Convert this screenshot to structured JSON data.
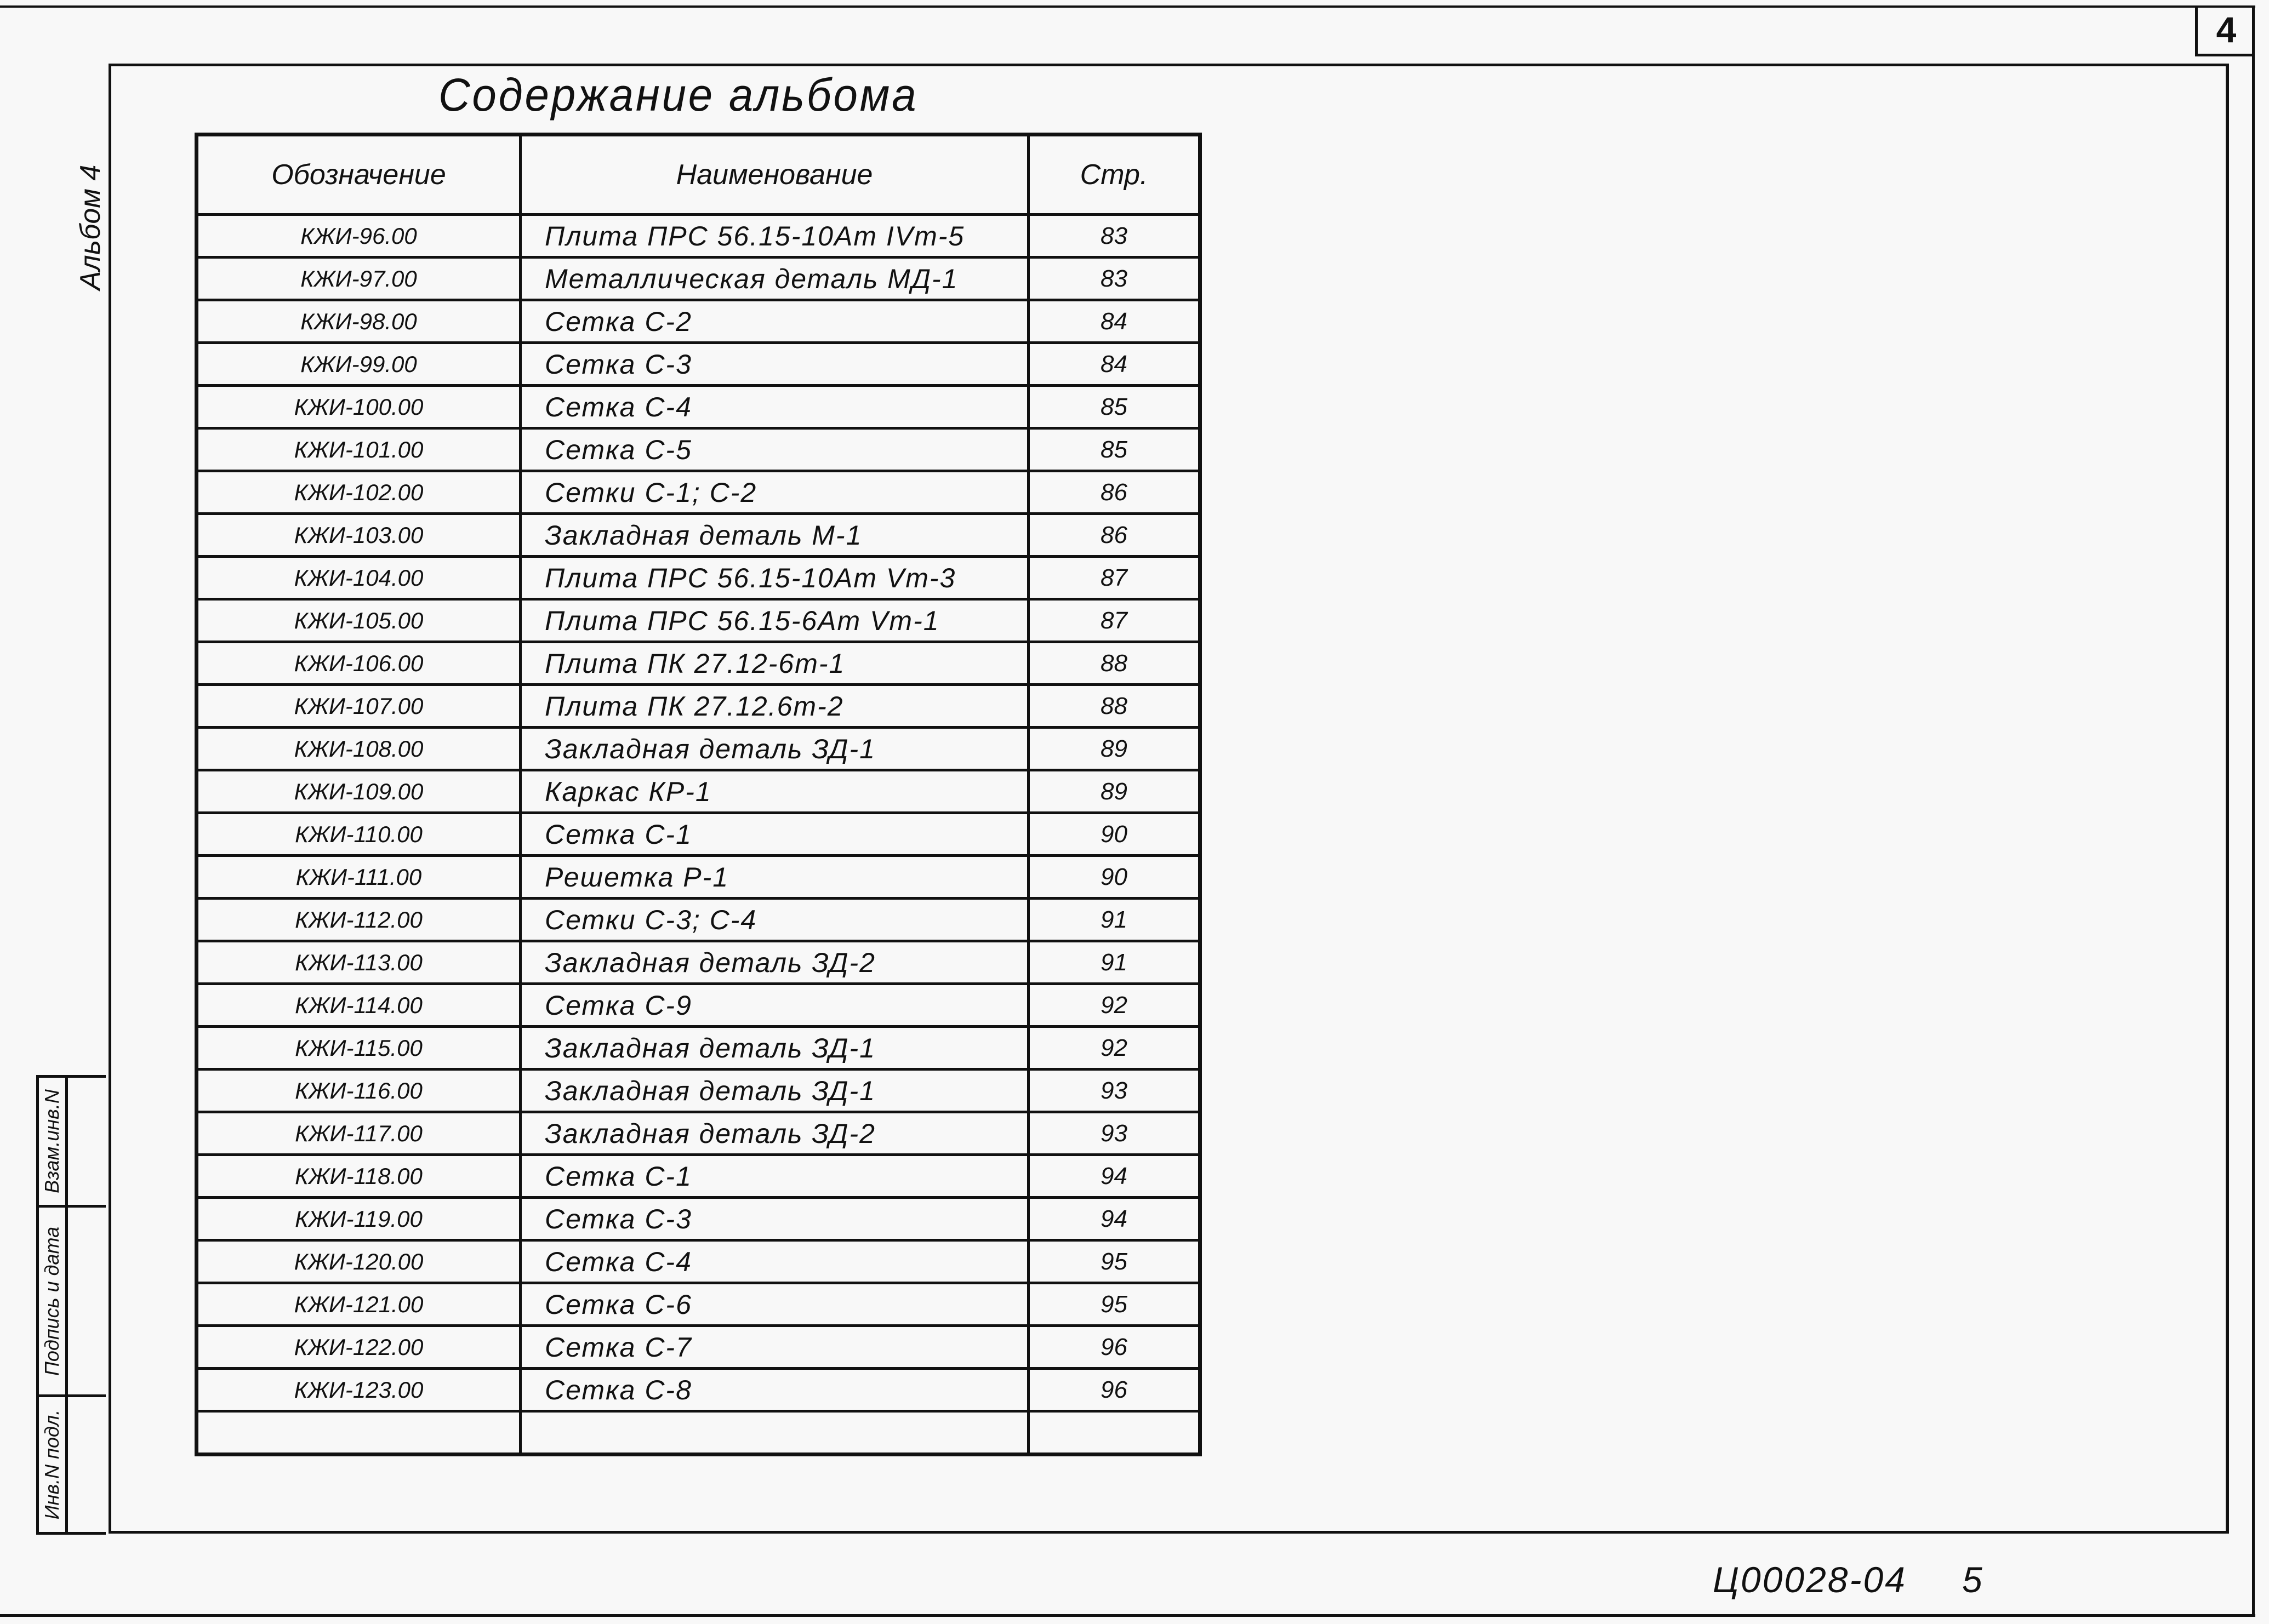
{
  "sheet_number": "4",
  "title": "Содержание альбома",
  "album_label": "Альбом 4",
  "table": {
    "headers": {
      "code": "Обозначение",
      "name": "Наименование",
      "page": "Стр."
    },
    "rows": [
      {
        "code": "КЖИ-96.00",
        "name": "Плита ПРС 56.15-10Ат IVт-5",
        "page": "83"
      },
      {
        "code": "КЖИ-97.00",
        "name": "Металлическая деталь МД-1",
        "page": "83"
      },
      {
        "code": "КЖИ-98.00",
        "name": "Сетка С-2",
        "page": "84"
      },
      {
        "code": "КЖИ-99.00",
        "name": "Сетка С-3",
        "page": "84"
      },
      {
        "code": "КЖИ-100.00",
        "name": "Сетка С-4",
        "page": "85"
      },
      {
        "code": "КЖИ-101.00",
        "name": "Сетка С-5",
        "page": "85"
      },
      {
        "code": "КЖИ-102.00",
        "name": "Сетки С-1; С-2",
        "page": "86"
      },
      {
        "code": "КЖИ-103.00",
        "name": "Закладная деталь М-1",
        "page": "86"
      },
      {
        "code": "КЖИ-104.00",
        "name": "Плита ПРС 56.15-10Ат Vт-3",
        "page": "87"
      },
      {
        "code": "КЖИ-105.00",
        "name": "Плита ПРС 56.15-6Ат Vт-1",
        "page": "87"
      },
      {
        "code": "КЖИ-106.00",
        "name": "Плита ПК 27.12-6т-1",
        "page": "88"
      },
      {
        "code": "КЖИ-107.00",
        "name": "Плита ПК 27.12.6т-2",
        "page": "88"
      },
      {
        "code": "КЖИ-108.00",
        "name": "Закладная деталь ЗД-1",
        "page": "89"
      },
      {
        "code": "КЖИ-109.00",
        "name": "Каркас КР-1",
        "page": "89"
      },
      {
        "code": "КЖИ-110.00",
        "name": "Сетка С-1",
        "page": "90"
      },
      {
        "code": "КЖИ-111.00",
        "name": "Решетка Р-1",
        "page": "90"
      },
      {
        "code": "КЖИ-112.00",
        "name": "Сетки С-3; С-4",
        "page": "91"
      },
      {
        "code": "КЖИ-113.00",
        "name": "Закладная деталь ЗД-2",
        "page": "91"
      },
      {
        "code": "КЖИ-114.00",
        "name": "Сетка С-9",
        "page": "92"
      },
      {
        "code": "КЖИ-115.00",
        "name": "Закладная деталь ЗД-1",
        "page": "92"
      },
      {
        "code": "КЖИ-116.00",
        "name": "Закладная деталь ЗД-1",
        "page": "93"
      },
      {
        "code": "КЖИ-117.00",
        "name": "Закладная деталь ЗД-2",
        "page": "93"
      },
      {
        "code": "КЖИ-118.00",
        "name": "Сетка С-1",
        "page": "94"
      },
      {
        "code": "КЖИ-119.00",
        "name": "Сетка С-3",
        "page": "94"
      },
      {
        "code": "КЖИ-120.00",
        "name": "Сетка С-4",
        "page": "95"
      },
      {
        "code": "КЖИ-121.00",
        "name": "Сетка С-6",
        "page": "95"
      },
      {
        "code": "КЖИ-122.00",
        "name": "Сетка С-7",
        "page": "96"
      },
      {
        "code": "КЖИ-123.00",
        "name": "Сетка С-8",
        "page": "96"
      }
    ]
  },
  "stamp": {
    "swap_inv": "Взам.инв.N",
    "signature_date": "Подпись и дата",
    "inv_original": "Инв.N подл."
  },
  "doc_code": "Ц00028-04",
  "page_number": "5"
}
